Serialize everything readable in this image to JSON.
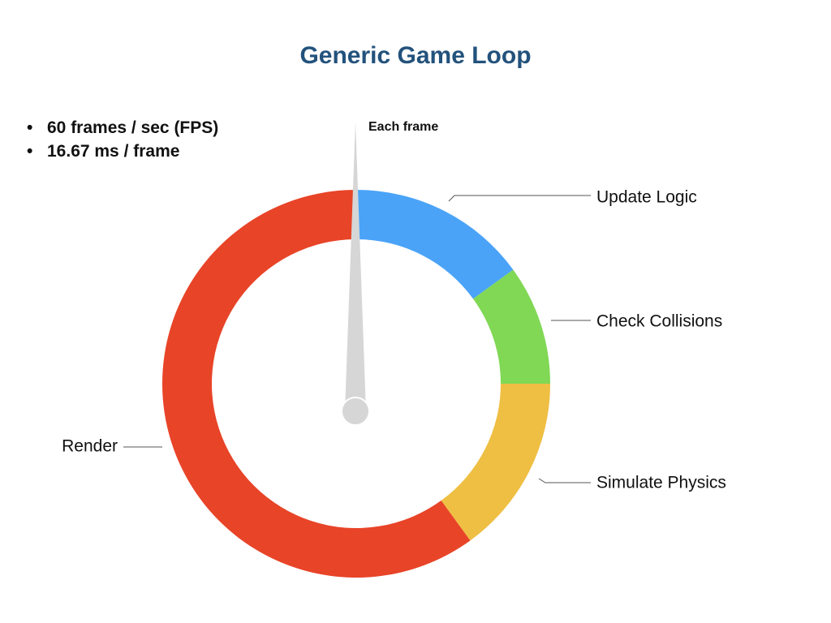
{
  "title": "Generic Game Loop",
  "bullets": [
    "60 frames / sec (FPS)",
    "16.67 ms / frame"
  ],
  "pointer_label": "Each frame",
  "pointer_position_fraction": 0.0,
  "segments": [
    {
      "name": "Update Logic",
      "fraction": 0.15,
      "color": "#4aa3f7"
    },
    {
      "name": "Check Collisions",
      "fraction": 0.1,
      "color": "#80d855"
    },
    {
      "name": "Simulate Physics",
      "fraction": 0.15,
      "color": "#efbf43"
    },
    {
      "name": "Render",
      "fraction": 0.6,
      "color": "#e84428"
    }
  ],
  "colors": {
    "title": "#23527c",
    "pointer": "#d6d6d6",
    "leader_line": "#555555"
  }
}
